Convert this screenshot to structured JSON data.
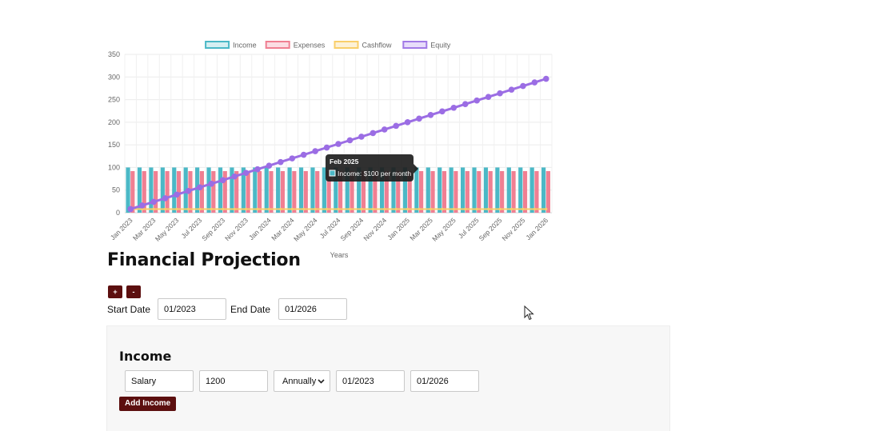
{
  "chart_data": {
    "type": "bar",
    "legend": [
      {
        "name": "Income",
        "border": "#4bb8c6",
        "fill": "#d5eff2"
      },
      {
        "name": "Expenses",
        "border": "#f07f92",
        "fill": "#fbdde3"
      },
      {
        "name": "Cashflow",
        "border": "#f9cf6a",
        "fill": "#fdf1d6"
      },
      {
        "name": "Equity",
        "border": "#a27ae6",
        "fill": "#e7dcfa"
      }
    ],
    "legend_position": "top",
    "xlabel": "Years",
    "ylabel": "",
    "ylim": [
      0,
      350
    ],
    "yticks": [
      0,
      50,
      100,
      150,
      200,
      250,
      300,
      350
    ],
    "grid": true,
    "x": [
      "Jan 2023",
      "Feb 2023",
      "Mar 2023",
      "Apr 2023",
      "May 2023",
      "Jun 2023",
      "Jul 2023",
      "Aug 2023",
      "Sep 2023",
      "Oct 2023",
      "Nov 2023",
      "Dec 2023",
      "Jan 2024",
      "Feb 2024",
      "Mar 2024",
      "Apr 2024",
      "May 2024",
      "Jun 2024",
      "Jul 2024",
      "Aug 2024",
      "Sep 2024",
      "Oct 2024",
      "Nov 2024",
      "Dec 2024",
      "Jan 2025",
      "Feb 2025",
      "Mar 2025",
      "Apr 2025",
      "May 2025",
      "Jun 2025",
      "Jul 2025",
      "Aug 2025",
      "Sep 2025",
      "Oct 2025",
      "Nov 2025",
      "Dec 2025",
      "Jan 2026"
    ],
    "x_tick_labels": [
      "Jan 2023",
      "Mar 2023",
      "May 2023",
      "Jul 2023",
      "Sep 2023",
      "Nov 2023",
      "Jan 2024",
      "Mar 2024",
      "May 2024",
      "Jul 2024",
      "Sep 2024",
      "Nov 2024",
      "Jan 2025",
      "Mar 2025",
      "May 2025",
      "Jul 2025",
      "Sep 2025",
      "Nov 2025",
      "Jan 2026"
    ],
    "series": [
      {
        "name": "Income",
        "kind": "bar",
        "color": "#4bb8c6",
        "values": [
          100,
          100,
          100,
          100,
          100,
          100,
          100,
          100,
          100,
          100,
          100,
          100,
          100,
          100,
          100,
          100,
          100,
          100,
          100,
          100,
          100,
          100,
          100,
          100,
          100,
          100,
          100,
          100,
          100,
          100,
          100,
          100,
          100,
          100,
          100,
          100,
          100
        ]
      },
      {
        "name": "Expenses",
        "kind": "bar",
        "color": "#f07f92",
        "values": [
          92,
          92,
          92,
          92,
          92,
          92,
          92,
          92,
          92,
          92,
          92,
          92,
          92,
          92,
          92,
          92,
          92,
          92,
          92,
          92,
          92,
          92,
          92,
          92,
          92,
          92,
          92,
          92,
          92,
          92,
          92,
          92,
          92,
          92,
          92,
          92,
          92
        ]
      },
      {
        "name": "Cashflow",
        "kind": "line",
        "color": "#f9cf6a",
        "values": [
          8,
          8,
          8,
          8,
          8,
          8,
          8,
          8,
          8,
          8,
          8,
          8,
          8,
          8,
          8,
          8,
          8,
          8,
          8,
          8,
          8,
          8,
          8,
          8,
          8,
          8,
          8,
          8,
          8,
          8,
          8,
          8,
          8,
          8,
          8,
          8,
          8
        ]
      },
      {
        "name": "Equity",
        "kind": "line",
        "color": "#9b6de4",
        "values": [
          8,
          16,
          24,
          32,
          40,
          48,
          56,
          64,
          72,
          80,
          88,
          96,
          104,
          112,
          120,
          128,
          136,
          144,
          152,
          160,
          168,
          176,
          184,
          192,
          200,
          208,
          216,
          224,
          232,
          240,
          248,
          256,
          264,
          272,
          280,
          288,
          296
        ]
      }
    ],
    "tooltip": {
      "title": "Feb 2025",
      "text": "Income: $100 per month",
      "color": "#4bb8c6",
      "index": 25
    }
  },
  "page": {
    "title": "Financial Projection",
    "zoom_in_label": "+",
    "zoom_out_label": "-",
    "start_date_label": "Start Date",
    "start_date_value": "01/2023",
    "end_date_label": "End Date",
    "end_date_value": "01/2026"
  },
  "income": {
    "heading": "Income",
    "name": "Salary",
    "amount": "1200",
    "frequency": "Annually",
    "start": "01/2023",
    "end": "01/2026",
    "add_label": "Add Income"
  },
  "colors": {
    "button": "#5c0f0f",
    "panel": "#f7f7f7"
  }
}
